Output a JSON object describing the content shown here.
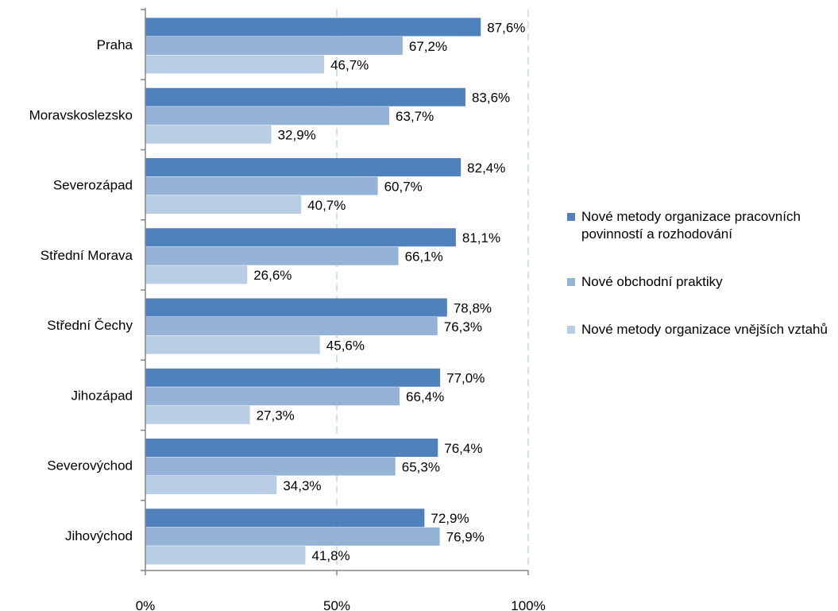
{
  "chart_data": {
    "type": "bar",
    "orientation": "horizontal",
    "categories": [
      "Praha",
      "Moravskoslezsko",
      "Severozápad",
      "Střední Morava",
      "Střední Čechy",
      "Jihozápad",
      "Severovýchod",
      "Jihovýchod"
    ],
    "series": [
      {
        "name": "Nové metody organizace pracovních povinností a rozhodování",
        "color": "#4f81bd",
        "values": [
          87.6,
          83.6,
          82.4,
          81.1,
          78.8,
          77.0,
          76.4,
          72.9
        ],
        "labels": [
          "87,6%",
          "83,6%",
          "82,4%",
          "81,1%",
          "78,8%",
          "77,0%",
          "76,4%",
          "72,9%"
        ]
      },
      {
        "name": "Nové obchodní praktiky",
        "color": "#95b3d7",
        "values": [
          67.2,
          63.7,
          60.7,
          66.1,
          76.3,
          66.4,
          65.3,
          76.9
        ],
        "labels": [
          "67,2%",
          "63,7%",
          "60,7%",
          "66,1%",
          "76,3%",
          "66,4%",
          "65,3%",
          "76,9%"
        ]
      },
      {
        "name": "Nové metody organizace vnějších vztahů",
        "color": "#b9cde5",
        "values": [
          46.7,
          32.9,
          40.7,
          26.6,
          45.6,
          27.3,
          34.3,
          41.8
        ],
        "labels": [
          "46,7%",
          "32,9%",
          "40,7%",
          "26,6%",
          "45,6%",
          "27,3%",
          "34,3%",
          "41,8%"
        ]
      }
    ],
    "xlim": [
      0,
      100
    ],
    "xticks": [
      0,
      50,
      100
    ],
    "xtick_labels": [
      "0%",
      "50%",
      "100%"
    ],
    "gridlines": "vertical dashed at 50%",
    "legend_position": "right",
    "title": "",
    "xlabel": "",
    "ylabel": ""
  }
}
